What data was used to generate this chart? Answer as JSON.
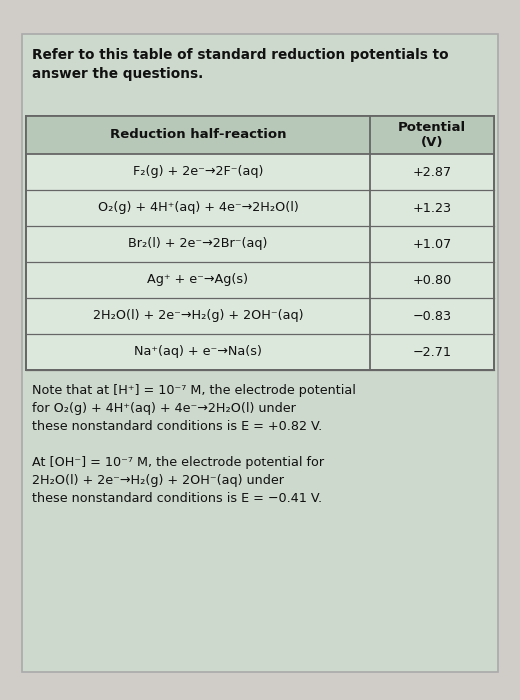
{
  "title_text": "Refer to this table of standard reduction potentials to\nanswer the questions.",
  "col_header1": "Reduction half-reaction",
  "col_header2": "Potential\n(V)",
  "rows": [
    [
      "F₂(g) + 2e⁻→2F⁻(aq)",
      "+2.87"
    ],
    [
      "O₂(g) + 4H⁺(aq) + 4e⁻→2H₂O(l)",
      "+1.23"
    ],
    [
      "Br₂(l) + 2e⁻→2Br⁻(aq)",
      "+1.07"
    ],
    [
      "Ag⁺ + e⁻→Ag(s)",
      "+0.80"
    ],
    [
      "2H₂O(l) + 2e⁻→H₂(g) + 2OH⁻(aq)",
      "−0.83"
    ],
    [
      "Na⁺(aq) + e⁻→Na(s)",
      "−2.71"
    ]
  ],
  "note1": "Note that at [H⁺] = 10⁻⁷ M, the electrode potential\nfor O₂(g) + 4H⁺(aq) + 4e⁻→2H₂O(l) under\nthese nonstandard conditions is E = +0.82 V.",
  "note2": "At [OH⁻] = 10⁻⁷ M, the electrode potential for\n2H₂O(l) + 2e⁻→H₂(g) + 2OH⁻(aq) under\nthese nonstandard conditions is E = −0.41 V.",
  "outer_bg": "#d0ccc8",
  "card_bg": "#cdd9cc",
  "table_cell_bg": "#dce8dc",
  "header_bg": "#b8c8b8",
  "border_color": "#666666",
  "text_color": "#111111",
  "col_split": 0.735
}
